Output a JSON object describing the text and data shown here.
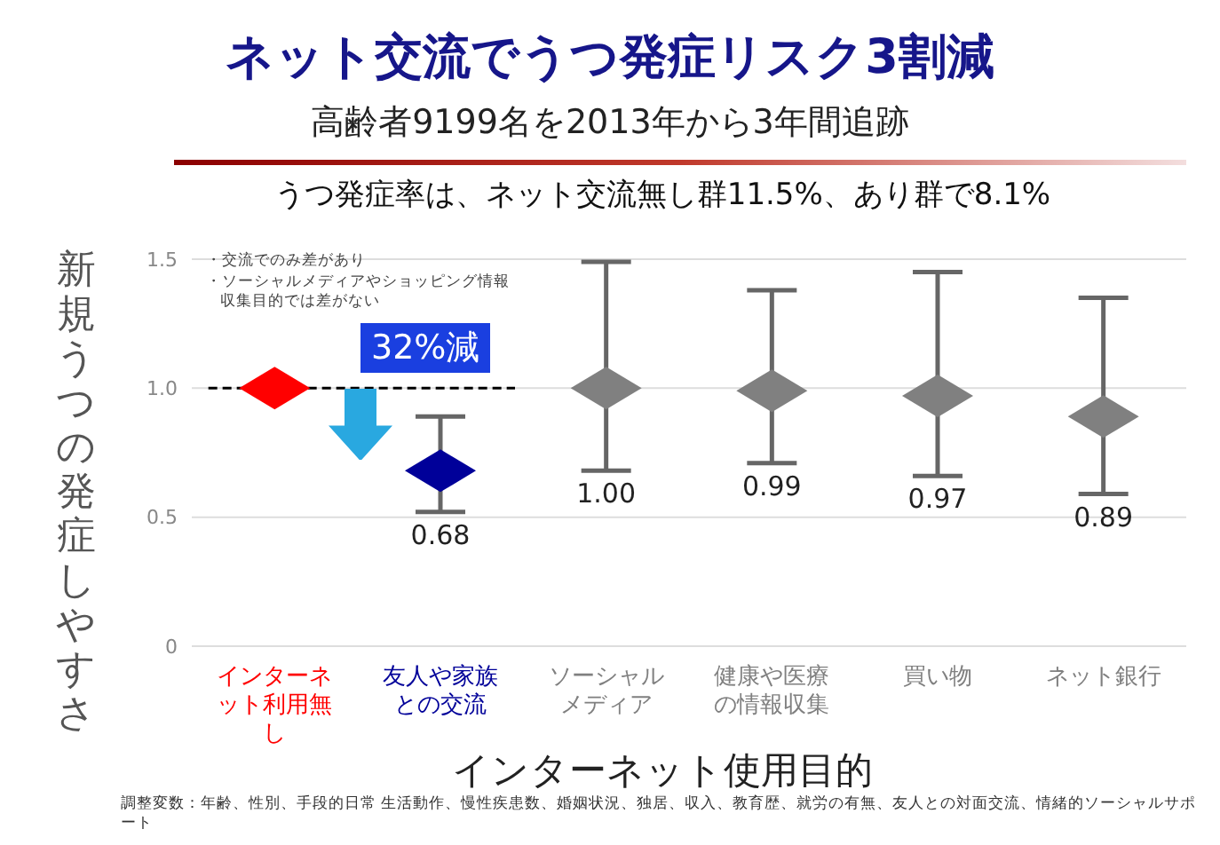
{
  "chart_data": {
    "type": "scatter",
    "title": "ネット交流でうつ発症リスク3割減",
    "subtitle": "高齢者9199名を2013年から3年間追跡",
    "ylabel": "新規うつの発症しやすさ",
    "xlabel": "インターネット使用目的",
    "categories": [
      "インターネット利用無し",
      "友人や家族との交流",
      "ソーシャルメディア",
      "健康や医療の情報収集",
      "買い物",
      "ネット銀行"
    ],
    "values": [
      1.0,
      0.68,
      1.0,
      0.99,
      0.97,
      0.89
    ],
    "colors": [
      "#ff0000",
      "#000099",
      "#808080",
      "#808080",
      "#808080",
      "#808080"
    ],
    "errors": [
      null,
      [
        0.52,
        0.89
      ],
      [
        0.68,
        1.49
      ],
      [
        0.71,
        1.38
      ],
      [
        0.66,
        1.45
      ],
      [
        0.59,
        1.35
      ]
    ],
    "value_labels": [
      null,
      "0.68",
      "1.00",
      "0.99",
      "0.97",
      "0.89"
    ],
    "ylim": [
      0,
      1.5
    ],
    "yticks": [
      1.5,
      {
        "value": 1,
        "label": "1.0"
      },
      0.5,
      0
    ],
    "grid": "y",
    "marker": "diamond",
    "ref_lines": [
      {
        "axis": "y",
        "value": 1,
        "color": "#000000",
        "line_style": "dashed"
      }
    ],
    "annotations": [
      "うつ発症率は、ネット交流無し群11.5%、あり群で8.1%",
      "・交流でのみ差があり",
      "・ソーシャルメディアやショッピング情報収集目的では差がない",
      "32%減",
      "調整変数：年齢、性別、手段的日常 生活動作、慢性疾患数、婚姻状況、独居、収入、教育歴、就労の有無、友人との対面交流、情緒的ソーシャルサポート"
    ]
  }
}
